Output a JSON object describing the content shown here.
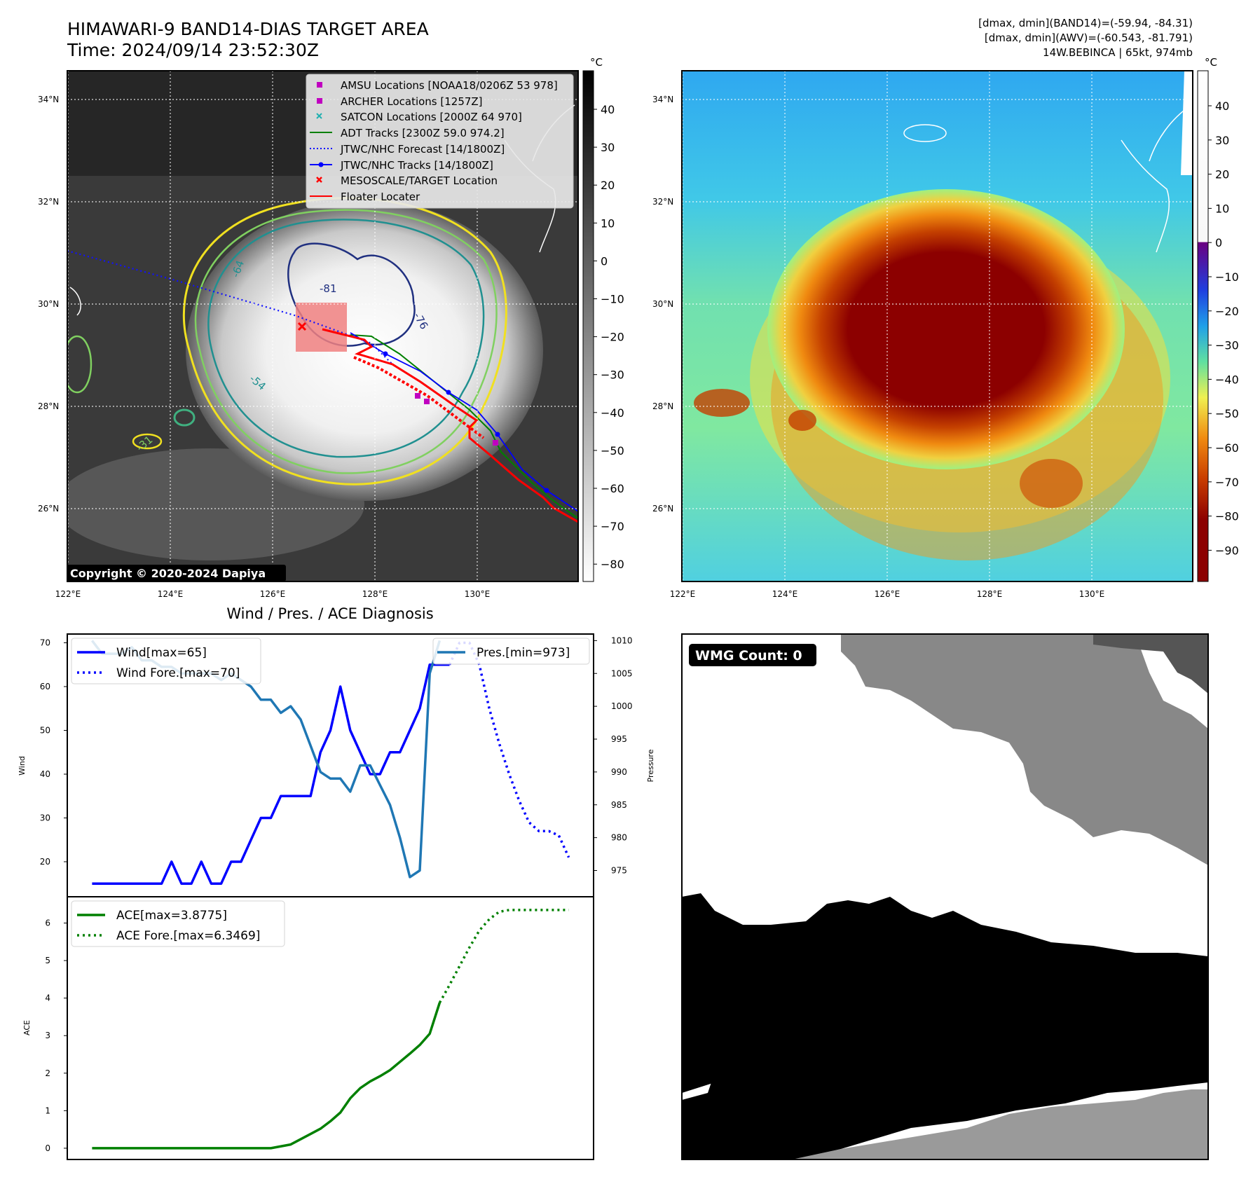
{
  "header": {
    "title_line1": "HIMAWARI-9 BAND14-DIAS TARGET AREA",
    "title_line2": "Time: 2024/09/14 23:52:30Z",
    "stat1": "[dmax, dmin](BAND14)=(-59.94, -84.31)",
    "stat2": "[dmax, dmin](AWV)=(-60.543, -81.791)",
    "storm": "14W.BEBINCA | 65kt, 974mb"
  },
  "map_axes": {
    "lat_ticks": [
      "34°N",
      "32°N",
      "30°N",
      "28°N",
      "26°N"
    ],
    "lon_ticks": [
      "122°E",
      "124°E",
      "126°E",
      "128°E",
      "130°E"
    ],
    "colorbar_unit": "°C",
    "ir_colorbar_ticks": [
      "40",
      "30",
      "20",
      "10",
      "0",
      "−10",
      "−20",
      "−30",
      "−40",
      "−50",
      "−60",
      "−70",
      "−80"
    ],
    "dias_colorbar_ticks": [
      "40",
      "30",
      "20",
      "10",
      "0",
      "−10",
      "−20",
      "−30",
      "−40",
      "−50",
      "−60",
      "−70",
      "−80",
      "−90"
    ],
    "contour_labels": [
      "-64",
      "-81",
      "-76",
      "-54",
      "-31"
    ]
  },
  "legend": {
    "items": [
      {
        "label": "AMSU Locations [NOAA18/0206Z 53 978]",
        "color": "#c000c0",
        "marker": "square"
      },
      {
        "label": "ARCHER Locations [1257Z]",
        "color": "#c000c0",
        "marker": "square"
      },
      {
        "label": "SATCON Locations [2000Z 64 970]",
        "color": "#20b0b0",
        "marker": "x"
      },
      {
        "label": "ADT Tracks [2300Z 59.0 974.2]",
        "color": "#008000",
        "marker": "line"
      },
      {
        "label": "JTWC/NHC Forecast [14/1800Z]",
        "color": "#0000ff",
        "marker": "dotted"
      },
      {
        "label": "JTWC/NHC Tracks [14/1800Z]",
        "color": "#0000ff",
        "marker": "line-dot"
      },
      {
        "label": "MESOSCALE/TARGET Location",
        "color": "#ff0000",
        "marker": "x"
      },
      {
        "label": "Floater Locater",
        "color": "#ff0000",
        "marker": "line"
      }
    ]
  },
  "copyright": "Copyright © 2020-2024 Dapiya",
  "diagnosis_title": "Wind / Pres. / ACE Diagnosis",
  "wmg_label": "WMG Count: 0",
  "chart_data": [
    {
      "type": "line",
      "title": "Wind / Pres. / ACE Diagnosis",
      "ylabel": "Wind",
      "y2label": "Pressure",
      "ylim": [
        12,
        72
      ],
      "y2lim": [
        971,
        1011
      ],
      "yticks": [
        20,
        30,
        40,
        50,
        60,
        70
      ],
      "y2ticks": [
        975,
        980,
        985,
        990,
        995,
        1000,
        1005,
        1010
      ],
      "legend_left": [
        "Wind[max=65]",
        "Wind Fore.[max=70]"
      ],
      "legend_right": [
        "Pres.[min=973]"
      ],
      "series": [
        {
          "name": "Wind[max=65]",
          "axis": "left",
          "color": "#0000ff",
          "style": "solid",
          "x": [
            0,
            1,
            2,
            3,
            4,
            5,
            6,
            7,
            8,
            9,
            10,
            11,
            12,
            13,
            14,
            15,
            16,
            17,
            18,
            19,
            20,
            21,
            22,
            23,
            24,
            25,
            26,
            27,
            28,
            29,
            30,
            31,
            32,
            33,
            34,
            35,
            36
          ],
          "values": [
            15,
            15,
            15,
            15,
            15,
            15,
            15,
            15,
            20,
            15,
            15,
            20,
            15,
            15,
            20,
            20,
            25,
            30,
            30,
            35,
            35,
            35,
            35,
            45,
            50,
            60,
            50,
            45,
            40,
            40,
            45,
            45,
            50,
            55,
            65,
            65,
            65
          ]
        },
        {
          "name": "Wind Fore.[max=70]",
          "axis": "left",
          "color": "#0000ff",
          "style": "dotted",
          "x": [
            36,
            37,
            38,
            39,
            40,
            41,
            42,
            43,
            44,
            45,
            46,
            47,
            48
          ],
          "values": [
            65,
            70,
            70,
            65,
            55,
            47,
            40,
            34,
            29,
            27,
            27,
            26,
            21
          ]
        },
        {
          "name": "Pres.[min=973]",
          "axis": "right",
          "color": "#1f77b4",
          "style": "solid",
          "x": [
            0,
            1,
            2,
            3,
            4,
            5,
            6,
            7,
            8,
            9,
            10,
            11,
            12,
            13,
            14,
            15,
            16,
            17,
            18,
            19,
            20,
            21,
            22,
            23,
            24,
            25,
            26,
            27,
            28,
            29,
            30,
            31,
            32,
            33,
            34,
            35
          ],
          "values": [
            1010,
            1008,
            1008,
            1008,
            1009,
            1007,
            1007,
            1006,
            1006,
            1005,
            1005,
            1005,
            1005,
            1004,
            1005,
            1004,
            1003,
            1001,
            1001,
            999,
            1000,
            998,
            994,
            990,
            989,
            989,
            987,
            991,
            991,
            988,
            985,
            980,
            974,
            975,
            1005,
            1010
          ]
        }
      ]
    },
    {
      "type": "line",
      "ylabel": "ACE",
      "ylim": [
        -0.3,
        6.7
      ],
      "yticks": [
        0,
        1,
        2,
        3,
        4,
        5,
        6
      ],
      "legend": [
        "ACE[max=3.8775]",
        "ACE Fore.[max=6.3469]"
      ],
      "series": [
        {
          "name": "ACE[max=3.8775]",
          "color": "#008000",
          "style": "solid",
          "x": [
            0,
            2,
            4,
            6,
            8,
            10,
            12,
            14,
            16,
            18,
            20,
            22,
            23,
            24,
            25,
            26,
            27,
            28,
            29,
            30,
            31,
            32,
            33,
            34,
            35
          ],
          "values": [
            0,
            0,
            0,
            0,
            0,
            0,
            0,
            0,
            0,
            0,
            0.1,
            0.38,
            0.52,
            0.72,
            0.95,
            1.33,
            1.6,
            1.78,
            1.92,
            2.08,
            2.3,
            2.52,
            2.75,
            3.05,
            3.8775
          ]
        },
        {
          "name": "ACE Fore.[max=6.3469]",
          "color": "#008000",
          "style": "dotted",
          "x": [
            35,
            36,
            37,
            38,
            39,
            40,
            41,
            42,
            43,
            44,
            45,
            46,
            47,
            48
          ],
          "values": [
            3.8775,
            4.35,
            4.85,
            5.35,
            5.8,
            6.1,
            6.3,
            6.3469,
            6.3469,
            6.3469,
            6.3469,
            6.3469,
            6.3469,
            6.3469
          ]
        }
      ]
    }
  ]
}
